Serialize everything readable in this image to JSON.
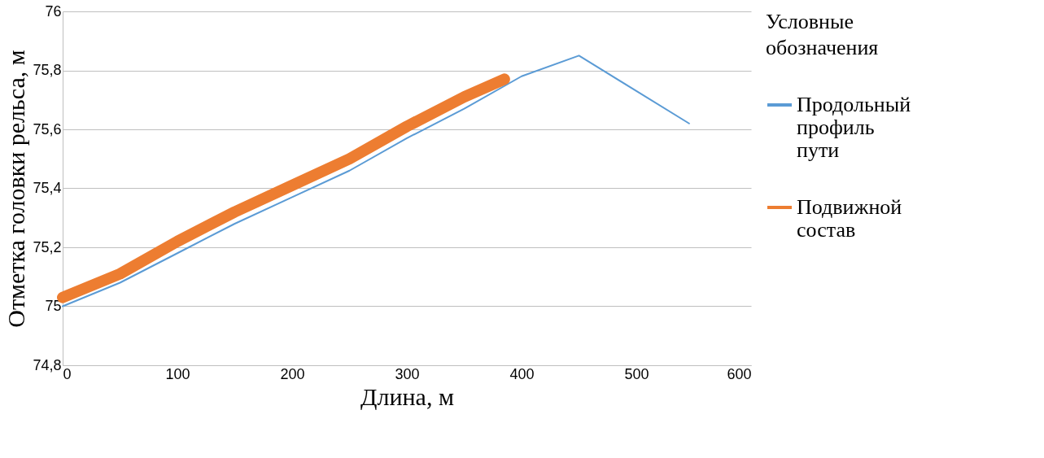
{
  "chart_data": {
    "type": "line",
    "xlabel": "Длина, м",
    "ylabel": "Отметка головки рельса, м",
    "legend_title": "Условные обозначения",
    "xlim": [
      0,
      600
    ],
    "xticks": [
      0,
      100,
      200,
      300,
      400,
      500,
      600
    ],
    "ylim": [
      74.8,
      76
    ],
    "yticks": [
      {
        "value": 74.8,
        "label": "74,8"
      },
      {
        "value": 75,
        "label": "75"
      },
      {
        "value": 75.2,
        "label": "75,2"
      },
      {
        "value": 75.4,
        "label": "75,4"
      },
      {
        "value": 75.6,
        "label": "75,6"
      },
      {
        "value": 75.8,
        "label": "75,8"
      },
      {
        "value": 76,
        "label": "76"
      }
    ],
    "grid": "y",
    "legend": "right",
    "marker": "none",
    "line_style": "solid",
    "series": [
      {
        "name": "Продольный профиль пути",
        "color": "#5b9bd5",
        "x": [
          0,
          50,
          100,
          150,
          200,
          250,
          300,
          350,
          400,
          450,
          546
        ],
        "values": [
          75.0,
          75.08,
          75.18,
          75.28,
          75.37,
          75.46,
          75.57,
          75.67,
          75.78,
          75.85,
          75.62
        ]
      },
      {
        "name": "Подвижной состав",
        "color": "#ed7d31",
        "x": [
          0,
          50,
          100,
          150,
          200,
          250,
          300,
          350,
          385
        ],
        "values": [
          75.03,
          75.11,
          75.22,
          75.32,
          75.41,
          75.5,
          75.61,
          75.71,
          75.77
        ]
      }
    ]
  }
}
